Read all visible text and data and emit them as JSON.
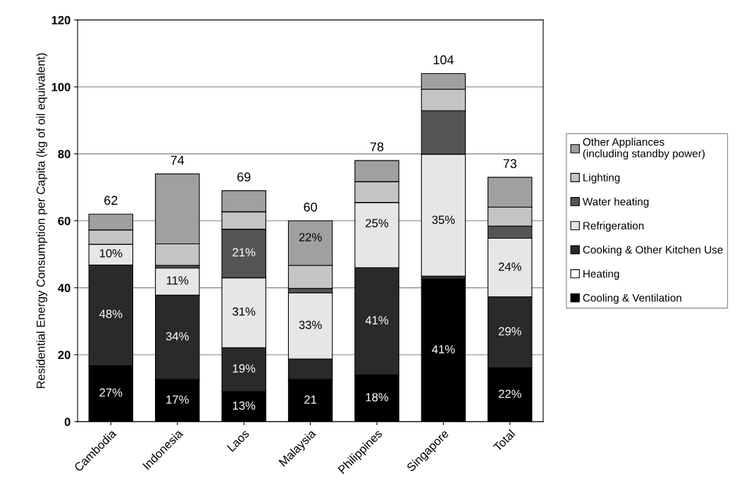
{
  "chart_data": {
    "type": "bar",
    "stacked": true,
    "ylabel": "Residential Energy Consumption per Capita (kg of oil equivalent)",
    "categories": [
      "Cambodia",
      "Indonesia",
      "Laos",
      "Malaysia",
      "Philippines",
      "Singapore",
      "Total"
    ],
    "series": [
      {
        "name": "Cooling & Ventilation",
        "color": "#000000",
        "values": [
          16.7,
          12.6,
          9.0,
          12.6,
          14.0,
          42.6,
          16.1
        ]
      },
      {
        "name": "Heating",
        "color": "#ffffff",
        "values": [
          0,
          0,
          0,
          0,
          0,
          0,
          0
        ]
      },
      {
        "name": "Cooking & Other Kitchen Use",
        "color": "#2a2a2a",
        "values": [
          30.1,
          25.2,
          13.1,
          6.1,
          32.0,
          0.9,
          21.2
        ]
      },
      {
        "name": "Refrigeration",
        "color": "#e6e6e6",
        "values": [
          6.2,
          8.1,
          20.9,
          19.8,
          19.5,
          36.4,
          17.5
        ]
      },
      {
        "name": "Water heating",
        "color": "#555555",
        "values": [
          0,
          0.8,
          14.5,
          1.3,
          0,
          13.0,
          3.6
        ]
      },
      {
        "name": "Lighting",
        "color": "#c4c4c4",
        "values": [
          4.3,
          6.4,
          5.2,
          6.9,
          6.2,
          6.4,
          5.7
        ]
      },
      {
        "name": "Other Appliances\n(including standby power)",
        "color": "#a0a0a0",
        "values": [
          4.7,
          20.9,
          6.3,
          13.3,
          6.3,
          4.7,
          8.9
        ]
      }
    ],
    "annotations": [
      {
        "text": "27%",
        "x": "Cambodia",
        "y": 8.4
      },
      {
        "text": "48%",
        "x": "Cambodia",
        "y": 31.9
      },
      {
        "text": "10%",
        "x": "Cambodia",
        "y": 50.0
      },
      {
        "text": "17%",
        "x": "Indonesia",
        "y": 6.3
      },
      {
        "text": "34%",
        "x": "Indonesia",
        "y": 25.2
      },
      {
        "text": "11%",
        "x": "Indonesia",
        "y": 41.9
      },
      {
        "text": "13%",
        "x": "Laos",
        "y": 4.5
      },
      {
        "text": "19%",
        "x": "Laos",
        "y": 15.6
      },
      {
        "text": "31%",
        "x": "Laos",
        "y": 32.6
      },
      {
        "text": "21%",
        "x": "Laos",
        "y": 50.3
      },
      {
        "text": "21",
        "x": "Malaysia",
        "y": 6.3
      },
      {
        "text": "33%",
        "x": "Malaysia",
        "y": 28.6
      },
      {
        "text": "22%",
        "x": "Malaysia",
        "y": 54.8
      },
      {
        "text": "18%",
        "x": "Philippines",
        "y": 7.0
      },
      {
        "text": "41%",
        "x": "Philippines",
        "y": 30.0
      },
      {
        "text": "25%",
        "x": "Philippines",
        "y": 59.0
      },
      {
        "text": "41%",
        "x": "Singapore",
        "y": 21.3
      },
      {
        "text": "35%",
        "x": "Singapore",
        "y": 60.0
      },
      {
        "text": "22%",
        "x": "Total",
        "y": 8.0
      },
      {
        "text": "29%",
        "x": "Total",
        "y": 26.7
      },
      {
        "text": "24%",
        "x": "Total",
        "y": 46.0
      }
    ],
    "totals": [
      "62",
      "74",
      "69",
      "60",
      "78",
      "104",
      "73"
    ],
    "ylim": [
      0,
      120
    ],
    "yticks": [
      0,
      20,
      40,
      60,
      80,
      100,
      120
    ],
    "grid": "y",
    "legend": "right"
  }
}
